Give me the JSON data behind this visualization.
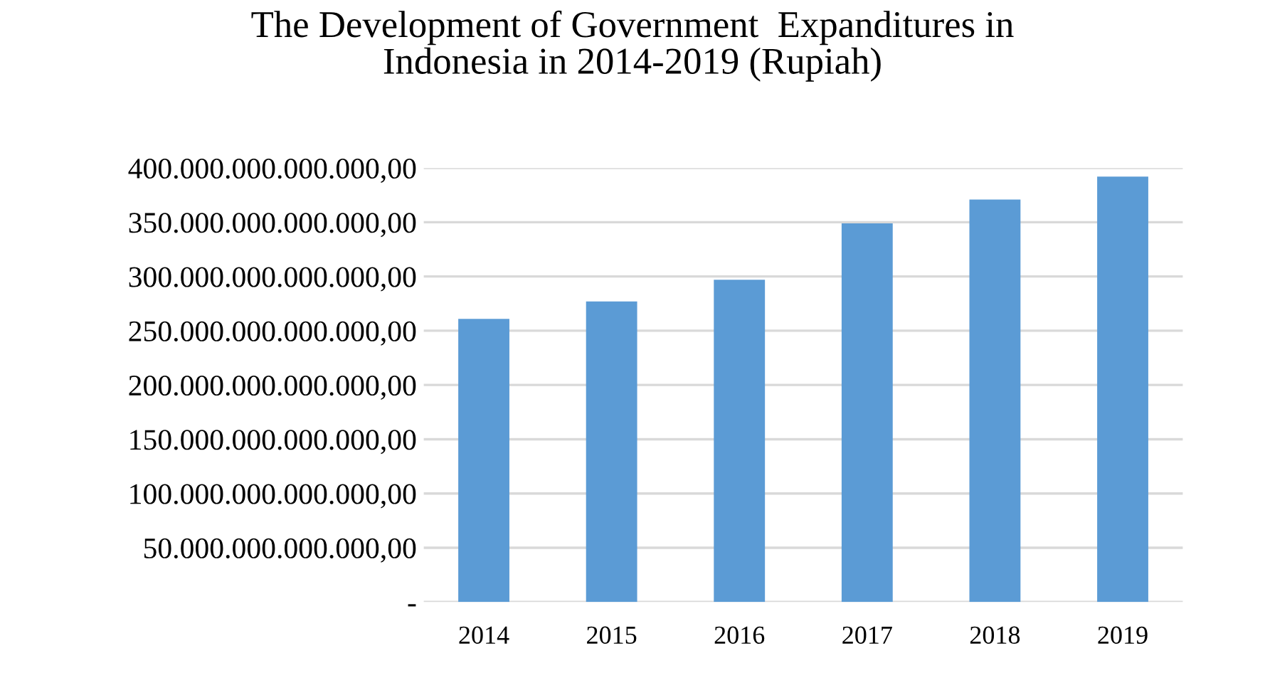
{
  "chart_data": {
    "type": "bar",
    "title": "The Development of Government  Expanditures in\nIndonesia in 2014-2019 (Rupiah)",
    "categories": [
      "2014",
      "2015",
      "2016",
      "2017",
      "2018",
      "2019"
    ],
    "values": [
      261000000000000,
      277000000000000,
      297000000000000,
      349000000000000,
      371000000000000,
      392000000000000
    ],
    "color": "#5b9bd5",
    "ylim": [
      0,
      400000000000000
    ],
    "yticks": [
      {
        "value": 0,
        "label": "-"
      },
      {
        "value": 50000000000000,
        "label": "50.000.000.000.000,00"
      },
      {
        "value": 100000000000000,
        "label": "100.000.000.000.000,00"
      },
      {
        "value": 150000000000000,
        "label": "150.000.000.000.000,00"
      },
      {
        "value": 200000000000000,
        "label": "200.000.000.000.000,00"
      },
      {
        "value": 250000000000000,
        "label": "250.000.000.000.000,00"
      },
      {
        "value": 300000000000000,
        "label": "300.000.000.000.000,00"
      },
      {
        "value": 350000000000000,
        "label": "350.000.000.000.000,00"
      },
      {
        "value": 400000000000000,
        "label": "400.000.000.000.000,00"
      }
    ],
    "grid": "y",
    "legend": false
  }
}
